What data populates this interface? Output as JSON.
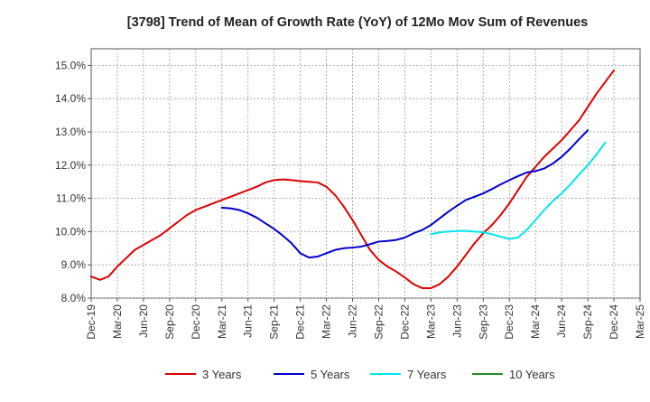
{
  "chart_data": {
    "type": "line",
    "title": "[3798]  Trend of Mean of Growth Rate (YoY) of 12Mo Mov Sum of Revenues",
    "xlabel": "",
    "ylabel": "",
    "ylim": [
      8.0,
      15.5
    ],
    "y_ticks": [
      8.0,
      9.0,
      10.0,
      11.0,
      12.0,
      13.0,
      14.0,
      15.0
    ],
    "y_tick_labels": [
      "8.0%",
      "9.0%",
      "10.0%",
      "11.0%",
      "12.0%",
      "13.0%",
      "14.0%",
      "15.0%"
    ],
    "x_tick_labels": [
      "Dec-19",
      "Mar-20",
      "Jun-20",
      "Sep-20",
      "Dec-20",
      "Mar-21",
      "Jun-21",
      "Sep-21",
      "Dec-21",
      "Mar-22",
      "Jun-22",
      "Sep-22",
      "Dec-22",
      "Mar-23",
      "Jun-23",
      "Sep-23",
      "Dec-23",
      "Mar-24",
      "Jun-24",
      "Sep-24",
      "Dec-24",
      "Mar-25"
    ],
    "x_range_months": [
      0,
      63
    ],
    "grid": true,
    "legend_position": "bottom",
    "series": [
      {
        "name": "3 Years",
        "color": "#dd0000",
        "start_month": 0,
        "values": [
          8.65,
          8.55,
          8.65,
          8.95,
          9.2,
          9.45,
          9.6,
          9.75,
          9.9,
          10.1,
          10.3,
          10.5,
          10.65,
          10.75,
          10.85,
          10.95,
          11.05,
          11.15,
          11.25,
          11.35,
          11.48,
          11.55,
          11.57,
          11.55,
          11.52,
          11.5,
          11.48,
          11.35,
          11.1,
          10.75,
          10.35,
          9.9,
          9.45,
          9.15,
          8.95,
          8.8,
          8.62,
          8.42,
          8.3,
          8.3,
          8.42,
          8.65,
          8.95,
          9.3,
          9.65,
          9.95,
          10.2,
          10.5,
          10.85,
          11.25,
          11.65,
          11.95,
          12.25,
          12.5,
          12.75,
          13.05,
          13.35,
          13.75,
          14.15,
          14.5,
          14.85
        ]
      },
      {
        "name": "5 Years",
        "color": "#0000cc",
        "start_month": 15,
        "values": [
          10.72,
          10.7,
          10.65,
          10.55,
          10.42,
          10.25,
          10.08,
          9.88,
          9.65,
          9.35,
          9.22,
          9.25,
          9.35,
          9.45,
          9.5,
          9.52,
          9.55,
          9.62,
          9.7,
          9.72,
          9.75,
          9.82,
          9.95,
          10.05,
          10.2,
          10.4,
          10.6,
          10.78,
          10.95,
          11.05,
          11.15,
          11.28,
          11.42,
          11.55,
          11.67,
          11.78,
          11.82,
          11.9,
          12.05,
          12.25,
          12.5,
          12.78,
          13.05
        ]
      },
      {
        "name": "7 Years",
        "color": "#00e5ee",
        "start_month": 39,
        "values": [
          9.92,
          9.98,
          10.0,
          10.02,
          10.02,
          10.0,
          9.98,
          9.92,
          9.85,
          9.78,
          9.82,
          10.05,
          10.35,
          10.65,
          10.92,
          11.15,
          11.42,
          11.72,
          12.0,
          12.32,
          12.68
        ]
      },
      {
        "name": "10 Years",
        "color": "#228b22",
        "start_month": 0,
        "values": []
      }
    ]
  }
}
